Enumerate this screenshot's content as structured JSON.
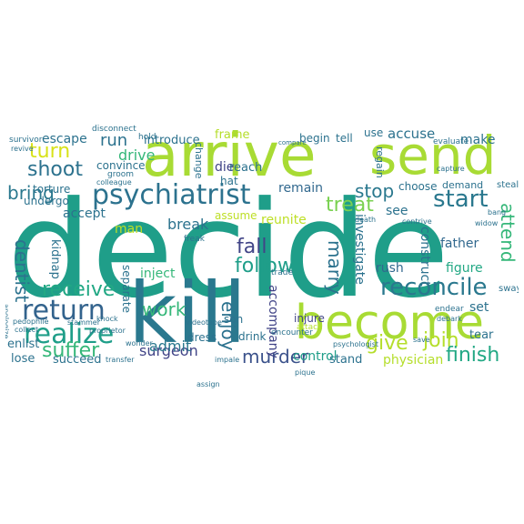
{
  "words": [
    {
      "text": "decide",
      "color": "#1f9e89"
    },
    {
      "text": "arrive",
      "color": "#a8db34"
    },
    {
      "text": "send",
      "color": "#a8db34"
    },
    {
      "text": "kill",
      "color": "#2a788e"
    },
    {
      "text": "become",
      "color": "#a8db34"
    },
    {
      "text": "psychiatrist",
      "color": "#2c728e"
    },
    {
      "text": "start",
      "color": "#2a788e"
    },
    {
      "text": "return",
      "color": "#33638d"
    },
    {
      "text": "follow",
      "color": "#1f9e89"
    },
    {
      "text": "receive",
      "color": "#22a884"
    },
    {
      "text": "reconcile",
      "color": "#2a788e"
    },
    {
      "text": "shoot",
      "color": "#2c728e"
    },
    {
      "text": "turn",
      "color": "#d8e219"
    },
    {
      "text": "run",
      "color": "#2c728e"
    },
    {
      "text": "bring",
      "color": "#2a788e"
    },
    {
      "text": "realize",
      "color": "#1f9e89"
    },
    {
      "text": "give",
      "color": "#b5de2b"
    },
    {
      "text": "join",
      "color": "#b5de2b"
    },
    {
      "text": "finish",
      "color": "#22a884"
    },
    {
      "text": "suffer",
      "color": "#35b779"
    },
    {
      "text": "treat",
      "color": "#7ad151"
    },
    {
      "text": "stop",
      "color": "#2a788e"
    },
    {
      "text": "fall",
      "color": "#414487"
    },
    {
      "text": "marry",
      "color": "#2c728e"
    },
    {
      "text": "attend",
      "color": "#35b779"
    },
    {
      "text": "dentist",
      "color": "#2c728e"
    },
    {
      "text": "work",
      "color": "#35b779"
    },
    {
      "text": "enjoy",
      "color": "#2c728e"
    },
    {
      "text": "murder",
      "color": "#3b528b"
    },
    {
      "text": "surgeon",
      "color": "#414487"
    },
    {
      "text": "admit",
      "color": "#2a788e"
    },
    {
      "text": "accuse",
      "color": "#2c728e"
    },
    {
      "text": "escape",
      "color": "#2c728e"
    },
    {
      "text": "drive",
      "color": "#35b779"
    },
    {
      "text": "make",
      "color": "#2c728e"
    },
    {
      "text": "accept",
      "color": "#2c728e"
    },
    {
      "text": "break",
      "color": "#2c728e"
    },
    {
      "text": "control",
      "color": "#1f9e89"
    },
    {
      "text": "physician",
      "color": "#b5de2b"
    },
    {
      "text": "inject",
      "color": "#35b779"
    },
    {
      "text": "reunite",
      "color": "#bddf26"
    },
    {
      "text": "remain",
      "color": "#31688e"
    },
    {
      "text": "investigate",
      "color": "#2c728e"
    },
    {
      "text": "accompany",
      "color": "#414487"
    },
    {
      "text": "construct",
      "color": "#2c728e"
    },
    {
      "text": "rush",
      "color": "#31688e"
    },
    {
      "text": "figure",
      "color": "#22a884"
    },
    {
      "text": "set",
      "color": "#2c728e"
    },
    {
      "text": "father",
      "color": "#31688e"
    },
    {
      "text": "see",
      "color": "#2c728e"
    },
    {
      "text": "tear",
      "color": "#2c728e"
    },
    {
      "text": "stand",
      "color": "#2c728e"
    },
    {
      "text": "lose",
      "color": "#2c728e"
    },
    {
      "text": "succeed",
      "color": "#2c728e"
    },
    {
      "text": "enlist",
      "color": "#2c728e"
    },
    {
      "text": "die",
      "color": "#414487"
    },
    {
      "text": "reach",
      "color": "#2c728e"
    },
    {
      "text": "introduce",
      "color": "#2c728e"
    },
    {
      "text": "frame",
      "color": "#b5de2b"
    },
    {
      "text": "convince",
      "color": "#2c728e"
    },
    {
      "text": "torture",
      "color": "#2c728e"
    },
    {
      "text": "undergo",
      "color": "#2c728e"
    },
    {
      "text": "kidnap",
      "color": "#2c728e"
    },
    {
      "text": "separate",
      "color": "#2c728e"
    },
    {
      "text": "man",
      "color": "#bddf26"
    },
    {
      "text": "assume",
      "color": "#bddf26"
    },
    {
      "text": "son",
      "color": "#2c728e"
    },
    {
      "text": "drink",
      "color": "#2c728e"
    },
    {
      "text": "dress",
      "color": "#2c728e"
    },
    {
      "text": "injure",
      "color": "#414487"
    },
    {
      "text": "use",
      "color": "#2c728e"
    },
    {
      "text": "tell",
      "color": "#2c728e"
    },
    {
      "text": "begin",
      "color": "#2c728e"
    },
    {
      "text": "choose",
      "color": "#2c728e"
    },
    {
      "text": "demand",
      "color": "#2c728e"
    },
    {
      "text": "regain",
      "color": "#2c728e"
    },
    {
      "text": "hat",
      "color": "#2c728e"
    },
    {
      "text": "change",
      "color": "#2c728e"
    },
    {
      "text": "hold",
      "color": "#2c728e"
    },
    {
      "text": "disconnect",
      "color": "#2c728e"
    },
    {
      "text": "steal",
      "color": "#2c728e"
    },
    {
      "text": "sway",
      "color": "#2c728e"
    },
    {
      "text": "trade",
      "color": "#2c728e"
    },
    {
      "text": "encounter",
      "color": "#2c728e"
    },
    {
      "text": "attack",
      "color": "#b5de2b"
    },
    {
      "text": "bang",
      "color": "#2c728e"
    },
    {
      "text": "groom",
      "color": "#2c728e"
    },
    {
      "text": "colleague",
      "color": "#2c728e"
    },
    {
      "text": "videotape",
      "color": "#2c728e"
    },
    {
      "text": "wonder",
      "color": "#2c728e"
    },
    {
      "text": "transfer",
      "color": "#2c728e"
    },
    {
      "text": "impale",
      "color": "#2c728e"
    },
    {
      "text": "collect",
      "color": "#2c728e"
    },
    {
      "text": "pedophile",
      "color": "#2c728e"
    },
    {
      "text": "stammer",
      "color": "#2c728e"
    },
    {
      "text": "knock",
      "color": "#2c728e"
    },
    {
      "text": "proprietor",
      "color": "#2c728e"
    },
    {
      "text": "apologize",
      "color": "#2c728e"
    },
    {
      "text": "survivor",
      "color": "#2c728e"
    },
    {
      "text": "revive",
      "color": "#2c728e"
    },
    {
      "text": "evaluate",
      "color": "#2c728e"
    },
    {
      "text": "endear",
      "color": "#2c728e"
    },
    {
      "text": "debark",
      "color": "#2c728e"
    },
    {
      "text": "widow",
      "color": "#2c728e"
    },
    {
      "text": "contrive",
      "color": "#2c728e"
    },
    {
      "text": "death",
      "color": "#2c728e"
    },
    {
      "text": "freak",
      "color": "#2c728e"
    },
    {
      "text": "assign",
      "color": "#2c728e"
    },
    {
      "text": "psychologist",
      "color": "#2c728e"
    },
    {
      "text": "save",
      "color": "#2c728e"
    },
    {
      "text": "pique",
      "color": "#2c728e"
    },
    {
      "text": "compare",
      "color": "#2c728e"
    },
    {
      "text": "capture",
      "color": "#2c728e"
    }
  ]
}
